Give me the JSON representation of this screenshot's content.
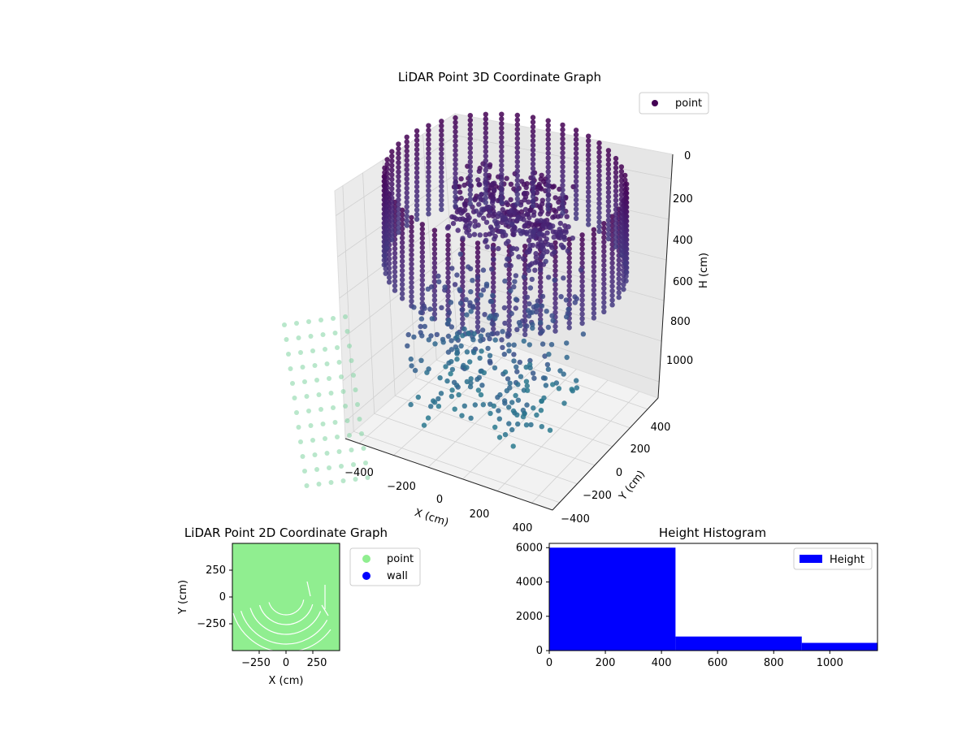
{
  "figure": {
    "background": "#ffffff"
  },
  "chart_data": [
    {
      "type": "scatter",
      "projection": "3d",
      "title": "LiDAR Point 3D Coordinate Graph",
      "xlabel": "X (cm)",
      "ylabel": "Y (cm)",
      "zlabel": "H (cm)",
      "xlim": [
        -500,
        450
      ],
      "ylim": [
        -450,
        480
      ],
      "zlim": [
        0,
        1150
      ],
      "z_inverted": true,
      "x_ticks": [
        "−400",
        "−200",
        "0",
        "200",
        "400"
      ],
      "y_ticks": [
        "−400",
        "−200",
        "0",
        "200",
        "400"
      ],
      "z_ticks": [
        "0",
        "200",
        "400",
        "600",
        "800",
        "1000"
      ],
      "colormap": "viridis (color by height)",
      "legend": {
        "position": "top-right",
        "entries": [
          {
            "label": "point",
            "color": "#440154"
          }
        ]
      },
      "series": [
        {
          "name": "point",
          "description": "ring of vertical point columns (wall) around origin, dense surface near center",
          "ring_radius": 470,
          "columns": 48,
          "height_range": [
            0,
            420
          ]
        }
      ],
      "grid": true
    },
    {
      "type": "scatter",
      "title": "LiDAR Point 2D Coordinate Graph",
      "xlabel": "X (cm)",
      "ylabel": "Y (cm)",
      "xlim": [
        -500,
        500
      ],
      "ylim": [
        -500,
        500
      ],
      "x_ticks": [
        "−250",
        "0",
        "250"
      ],
      "y_ticks": [
        "250",
        "0",
        "−250"
      ],
      "legend": {
        "position": "right-outside",
        "entries": [
          {
            "label": "point",
            "color": "#90ee90"
          },
          {
            "label": "wall",
            "color": "#0000ff"
          }
        ]
      }
    },
    {
      "type": "bar",
      "title": "Height Histogram",
      "bins": [
        [
          0,
          450
        ],
        [
          450,
          900
        ],
        [
          900,
          1170
        ]
      ],
      "values": [
        6000,
        820,
        450
      ],
      "xlim": [
        0,
        1170
      ],
      "ylim": [
        0,
        6250
      ],
      "x_ticks": [
        0,
        200,
        400,
        600,
        800,
        1000
      ],
      "y_ticks": [
        0,
        2000,
        4000,
        6000
      ],
      "color": "#0000ff",
      "legend": {
        "position": "top-right",
        "entries": [
          {
            "label": "Height",
            "color": "#0000ff"
          }
        ]
      }
    }
  ]
}
